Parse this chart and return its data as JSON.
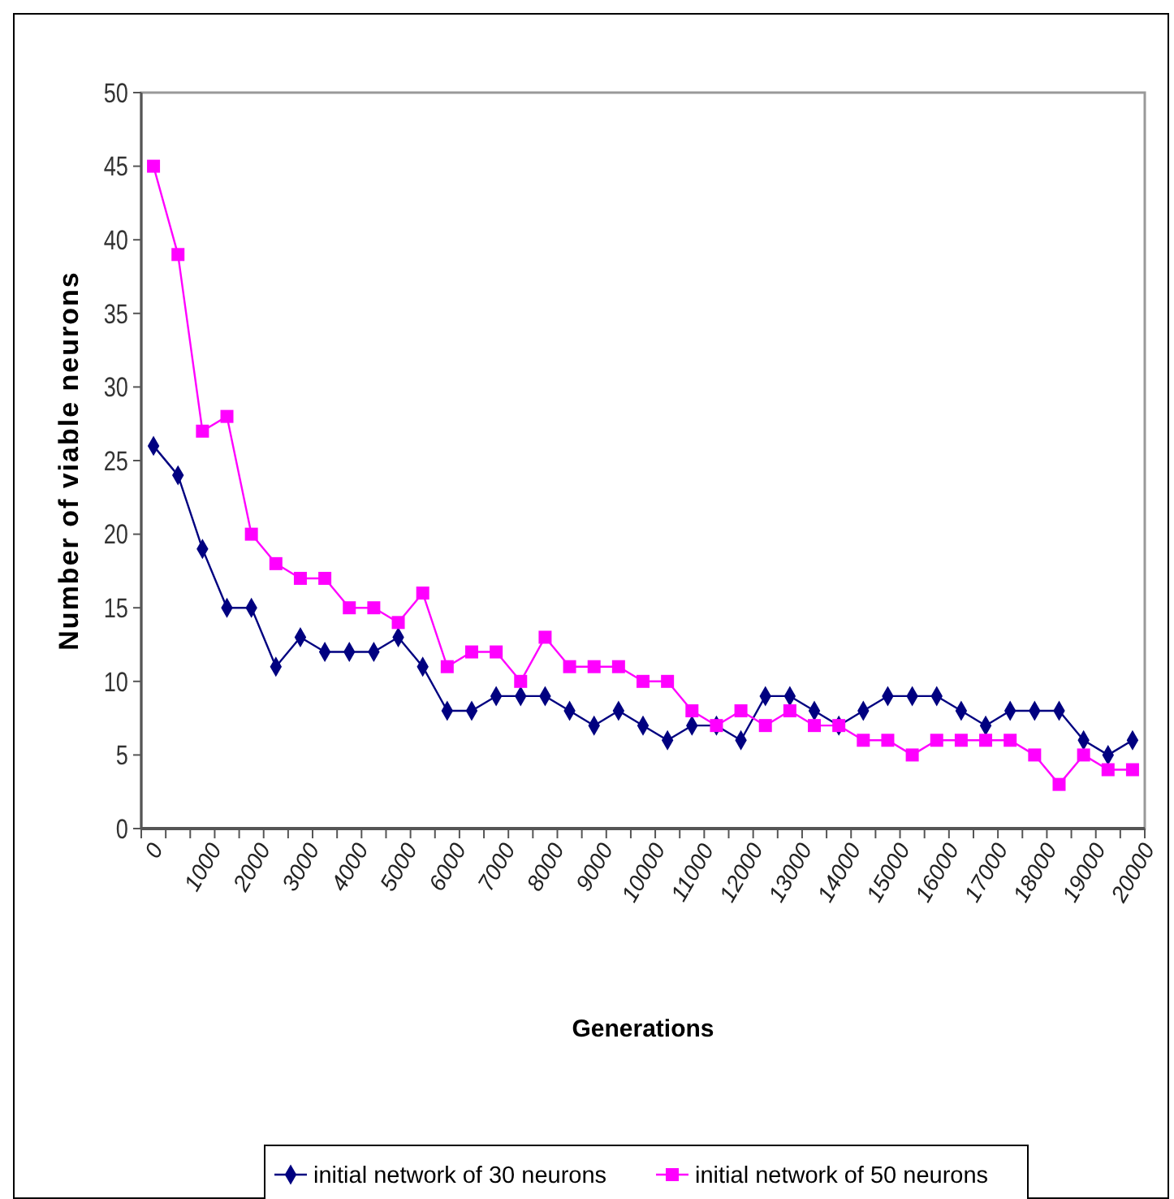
{
  "chart_data": {
    "type": "line",
    "xlabel": "Generations",
    "ylabel": "Number of viable neurons",
    "categories": [
      "0",
      null,
      "1000",
      null,
      "2000",
      null,
      "3000",
      null,
      "4000",
      null,
      "5000",
      null,
      "6000",
      null,
      "7000",
      null,
      "8000",
      null,
      "9000",
      null,
      "10000",
      null,
      "11000",
      null,
      "12000",
      null,
      "13000",
      null,
      "14000",
      null,
      "15000",
      null,
      "16000",
      null,
      "17000",
      null,
      "18000",
      null,
      "19000",
      null,
      "20000"
    ],
    "series": [
      {
        "name": "initial network of 30 neurons",
        "color": "#000080",
        "marker": "diamond",
        "values": [
          26,
          24,
          19,
          15,
          15,
          11,
          13,
          12,
          12,
          12,
          13,
          11,
          8,
          8,
          9,
          9,
          9,
          8,
          7,
          8,
          7,
          6,
          7,
          7,
          6,
          9,
          9,
          8,
          7,
          8,
          9,
          9,
          9,
          8,
          7,
          8,
          8,
          8,
          6,
          5,
          6
        ]
      },
      {
        "name": "initial network of 50 neurons",
        "color": "#ff00ff",
        "marker": "square",
        "values": [
          45,
          39,
          27,
          28,
          20,
          18,
          17,
          17,
          15,
          15,
          14,
          16,
          11,
          12,
          12,
          10,
          13,
          11,
          11,
          11,
          10,
          10,
          8,
          7,
          8,
          7,
          8,
          7,
          7,
          6,
          6,
          5,
          6,
          6,
          6,
          6,
          5,
          3,
          5,
          4,
          4
        ]
      }
    ],
    "ylim": [
      0,
      50
    ],
    "yticks": [
      0,
      5,
      10,
      15,
      20,
      25,
      30,
      35,
      40,
      45,
      50
    ],
    "grid": false,
    "legend": "bottom"
  }
}
